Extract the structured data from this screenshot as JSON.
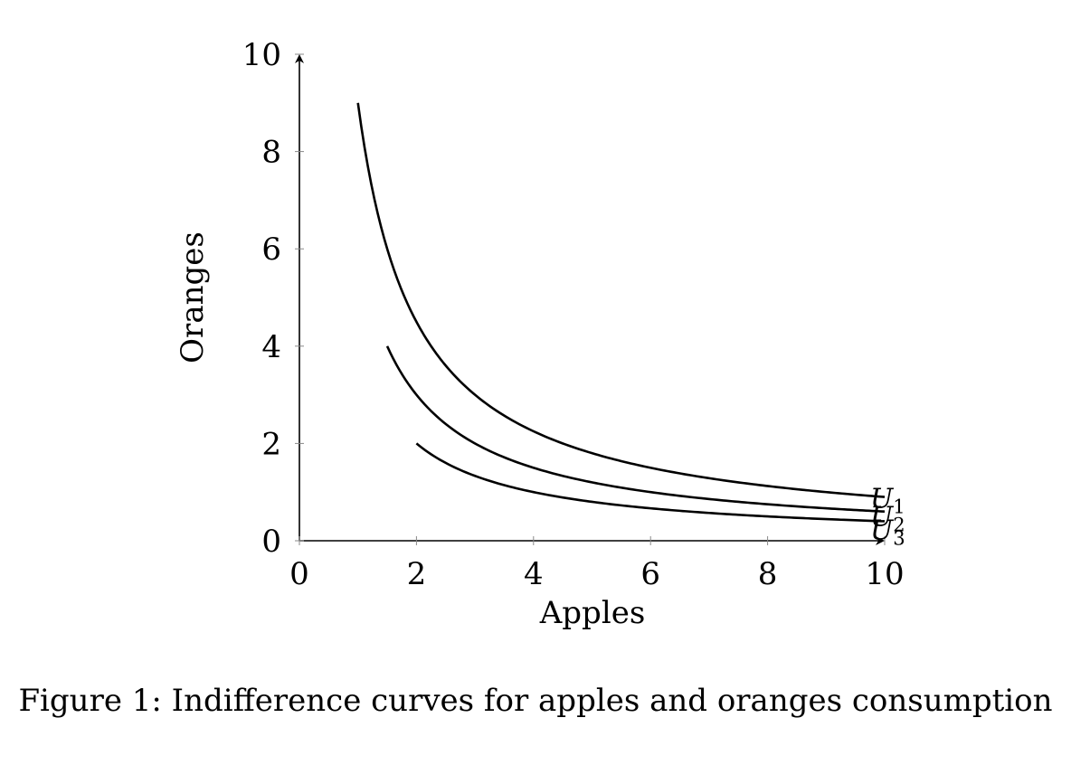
{
  "caption": "Figure 1: Indifference curves for apples and oranges consumption",
  "chart_data": {
    "type": "line",
    "title": "",
    "xlabel": "Apples",
    "ylabel": "Oranges",
    "xlim": [
      0,
      10
    ],
    "ylim": [
      0,
      10
    ],
    "xticks": [
      0,
      2,
      4,
      6,
      8,
      10
    ],
    "yticks": [
      0,
      2,
      4,
      6,
      8,
      10
    ],
    "grid": false,
    "legend": "none",
    "line_color": "#000000",
    "series": [
      {
        "name": "U1",
        "label_base": "U",
        "label_sub": "1",
        "formula": "y = 9 / x",
        "x_range": [
          1,
          10
        ],
        "x": [
          1,
          1.5,
          2,
          3,
          4,
          6,
          8,
          10
        ],
        "y": [
          9,
          6,
          4.5,
          3,
          2.25,
          1.5,
          1.125,
          0.9
        ]
      },
      {
        "name": "U2",
        "label_base": "U",
        "label_sub": "2",
        "formula": "y = 6 / x",
        "x_range": [
          1.5,
          10
        ],
        "x": [
          1.5,
          2,
          3,
          4,
          6,
          8,
          10
        ],
        "y": [
          4,
          3,
          2,
          1.5,
          1,
          0.75,
          0.6
        ]
      },
      {
        "name": "U3",
        "label_base": "U",
        "label_sub": "3",
        "formula": "y = 4 / x",
        "x_range": [
          2,
          10
        ],
        "x": [
          2,
          3,
          4,
          6,
          8,
          10
        ],
        "y": [
          2,
          1.333,
          1,
          0.667,
          0.5,
          0.4
        ]
      }
    ]
  }
}
